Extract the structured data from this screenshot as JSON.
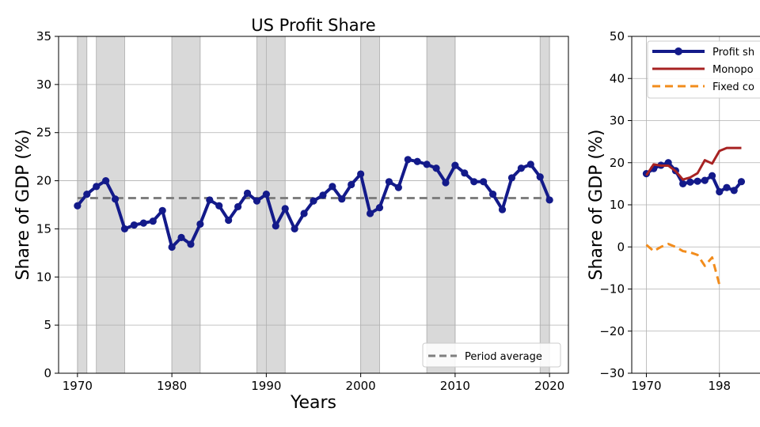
{
  "chart_data": [
    {
      "type": "line",
      "title": "US Profit Share",
      "xlabel": "Years",
      "ylabel": "Share of GDP (%)",
      "xlim": [
        1968,
        2022
      ],
      "ylim": [
        0,
        35
      ],
      "xticks": [
        "1970",
        "1980",
        "1990",
        "2000",
        "2010",
        "2020"
      ],
      "yticks": [
        "0",
        "5",
        "10",
        "15",
        "20",
        "25",
        "30",
        "35"
      ],
      "grid": true,
      "legend_position": "lower-right",
      "recession_shading_color": "#d9d9d9",
      "recession_periods": [
        [
          1970,
          1971
        ],
        [
          1972,
          1975
        ],
        [
          1980,
          1983
        ],
        [
          1989,
          1992
        ],
        [
          2000,
          2002
        ],
        [
          2007,
          2010
        ],
        [
          2019,
          2020
        ]
      ],
      "series": [
        {
          "name": "",
          "color": "#131a8a",
          "marker": "circle",
          "x": [
            1970,
            1971,
            1972,
            1973,
            1974,
            1975,
            1976,
            1977,
            1978,
            1979,
            1980,
            1981,
            1982,
            1983,
            1984,
            1985,
            1986,
            1987,
            1988,
            1989,
            1990,
            1991,
            1992,
            1993,
            1994,
            1995,
            1996,
            1997,
            1998,
            1999,
            2000,
            2001,
            2002,
            2003,
            2004,
            2005,
            2006,
            2007,
            2008,
            2009,
            2010,
            2011,
            2012,
            2013,
            2014,
            2015,
            2016,
            2017,
            2018,
            2019,
            2020
          ],
          "y": [
            17.4,
            18.6,
            19.4,
            20.0,
            18.1,
            15.0,
            15.4,
            15.6,
            15.8,
            16.9,
            13.1,
            14.1,
            13.4,
            15.5,
            18.0,
            17.4,
            15.9,
            17.3,
            18.7,
            17.9,
            18.6,
            15.3,
            17.1,
            15.0,
            16.6,
            17.9,
            18.5,
            19.4,
            18.1,
            19.6,
            20.7,
            16.6,
            17.2,
            19.9,
            19.3,
            22.2,
            22.0,
            21.7,
            21.3,
            19.8,
            21.6,
            20.8,
            19.9,
            19.9,
            18.6,
            17.0,
            20.3,
            21.3,
            21.7,
            20.4,
            18.0
          ]
        },
        {
          "name": "Period average",
          "color": "#7f7f7f",
          "style": "dashed",
          "x": [
            1970,
            2020
          ],
          "y": [
            18.2,
            18.2
          ]
        }
      ]
    },
    {
      "type": "line",
      "title": "",
      "xlabel": "",
      "ylabel": "Share of GDP (%)",
      "ylim": [
        -30,
        50
      ],
      "xticks": [
        "1970",
        "198"
      ],
      "yticks": [
        "−30",
        "−20",
        "−10",
        "0",
        "10",
        "20",
        "30",
        "40",
        "50"
      ],
      "grid": true,
      "legend_position": "top-left",
      "series": [
        {
          "name": "Profit sh",
          "color": "#131a8a",
          "marker": "circle",
          "x": [
            1970,
            1971,
            1972,
            1973,
            1974,
            1975,
            1976,
            1977,
            1978,
            1979,
            1980,
            1981,
            1982,
            1983
          ],
          "y": [
            17.4,
            18.6,
            19.4,
            20.0,
            18.1,
            15.0,
            15.4,
            15.6,
            15.8,
            16.9,
            13.1,
            14.1,
            13.4,
            15.5
          ]
        },
        {
          "name": "Monopo",
          "color": "#a72222",
          "x": [
            1970,
            1971,
            1972,
            1973,
            1974,
            1975,
            1976,
            1977,
            1978,
            1979,
            1980,
            1981,
            1982,
            1983
          ],
          "y": [
            17.0,
            19.6,
            19.3,
            19.3,
            18.0,
            16.0,
            16.5,
            17.5,
            20.6,
            19.8,
            22.8,
            23.5,
            23.5,
            23.5
          ]
        },
        {
          "name": "Fixed co",
          "color": "#f28c1c",
          "style": "dashed",
          "x": [
            1970,
            1971,
            1972,
            1973,
            1974,
            1975,
            1976,
            1977,
            1978,
            1979,
            1980
          ],
          "y": [
            0.5,
            -1.0,
            0.0,
            0.7,
            0.0,
            -1.0,
            -1.3,
            -1.9,
            -4.5,
            -2.5,
            -9.0
          ]
        }
      ]
    }
  ]
}
